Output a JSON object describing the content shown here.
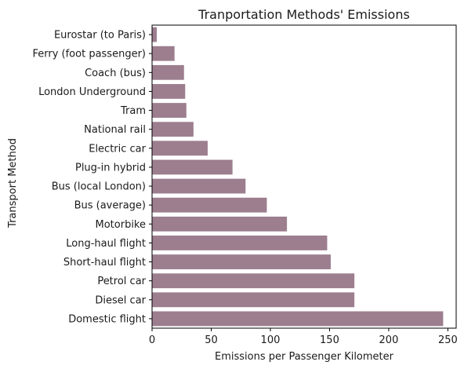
{
  "chart_data": {
    "type": "bar",
    "orientation": "horizontal",
    "title": "Tranportation Methods' Emissions",
    "xlabel": "Emissions per Passenger Kilometer",
    "ylabel": "Transport Method",
    "xlim": [
      0,
      257
    ],
    "xticks": [
      0,
      50,
      100,
      150,
      200,
      250
    ],
    "grid": false,
    "bar_color": "#9c7e8f",
    "categories": [
      "Eurostar (to Paris)",
      "Ferry (foot passenger)",
      "Coach (bus)",
      "London Underground",
      "Tram",
      "National rail",
      "Electric car",
      "Plug-in hybrid",
      "Bus (local London)",
      "Bus (average)",
      "Motorbike",
      "Long-haul flight",
      "Short-haul flight",
      "Petrol car",
      "Diesel car",
      "Domestic flight"
    ],
    "values": [
      4,
      19,
      27,
      28,
      29,
      35,
      47,
      68,
      79,
      97,
      114,
      148,
      151,
      171,
      171,
      246
    ]
  }
}
